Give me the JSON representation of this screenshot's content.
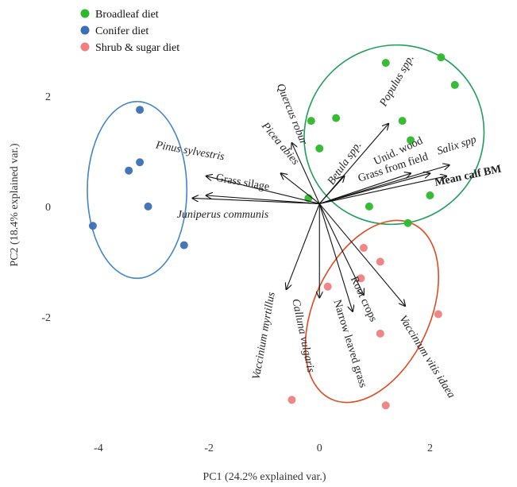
{
  "chart_data": {
    "type": "scatter",
    "subtype": "pca-biplot",
    "xlabel": "PC1 (24.2% explained var.)",
    "ylabel": "PC2 (18.4% explained var.)",
    "xlim": [
      -4.3,
      3.1
    ],
    "ylim": [
      -4.1,
      3.45
    ],
    "x_ticks": [
      -4,
      -2,
      0,
      2
    ],
    "y_ticks": [
      2,
      0,
      -2
    ],
    "x_tick_labels": [
      "-4",
      "-2",
      "0",
      "2"
    ],
    "y_tick_labels": [
      "2",
      "0",
      "-2"
    ],
    "grid": false,
    "legend_position": "top-left",
    "series": [
      {
        "name": "Broadleaf diet",
        "color": "#2db82d",
        "ellipse_color": "#1f9e5a",
        "ellipse": {
          "cx": 1.35,
          "cy": 1.3,
          "rx": 1.65,
          "ry": 1.6,
          "angle_deg": -42
        },
        "points": [
          {
            "x": 1.2,
            "y": 2.6
          },
          {
            "x": 2.2,
            "y": 2.7
          },
          {
            "x": 2.45,
            "y": 2.2
          },
          {
            "x": -0.15,
            "y": 1.55
          },
          {
            "x": 0.3,
            "y": 1.6
          },
          {
            "x": 1.5,
            "y": 1.55
          },
          {
            "x": 0.0,
            "y": 1.05
          },
          {
            "x": 1.65,
            "y": 1.2
          },
          {
            "x": -0.2,
            "y": 0.15
          },
          {
            "x": 0.9,
            "y": 0.0
          },
          {
            "x": 2.0,
            "y": 0.2
          },
          {
            "x": 1.6,
            "y": -0.3
          }
        ]
      },
      {
        "name": "Conifer diet",
        "color": "#3a6fb5",
        "ellipse_color": "#3f86c8",
        "ellipse": {
          "cx": -3.3,
          "cy": 0.3,
          "rx": 0.9,
          "ry": 1.6,
          "angle_deg": 0
        },
        "points": [
          {
            "x": -3.25,
            "y": 1.75
          },
          {
            "x": -3.25,
            "y": 0.8
          },
          {
            "x": -3.45,
            "y": 0.65
          },
          {
            "x": -3.1,
            "y": 0.0
          },
          {
            "x": -4.1,
            "y": -0.35
          },
          {
            "x": -2.45,
            "y": -0.7
          }
        ]
      },
      {
        "name": "Shrub & sugar diet",
        "color": "#f08080",
        "ellipse_color": "#e04a1f",
        "ellipse": {
          "cx": 0.95,
          "cy": -1.9,
          "rx": 1.05,
          "ry": 1.75,
          "angle_deg": 25
        },
        "points": [
          {
            "x": 0.8,
            "y": -0.75
          },
          {
            "x": 1.1,
            "y": -1.0
          },
          {
            "x": 0.75,
            "y": -1.3
          },
          {
            "x": 0.15,
            "y": -1.45
          },
          {
            "x": 2.15,
            "y": -1.95
          },
          {
            "x": 1.1,
            "y": -2.3
          },
          {
            "x": -0.5,
            "y": -3.5
          },
          {
            "x": 1.2,
            "y": -3.6
          }
        ]
      }
    ],
    "loadings": [
      {
        "label": "Populus spp.",
        "x": 1.25,
        "y": 1.5,
        "label_x": 1.45,
        "label_y": 2.25,
        "angle": -60,
        "style": "italic"
      },
      {
        "label": "Quercus robur",
        "x": -0.5,
        "y": 1.15,
        "label_x": -0.55,
        "label_y": 1.65,
        "angle": 68,
        "style": "italic"
      },
      {
        "label": "Picea abies",
        "x": -0.7,
        "y": 0.6,
        "label_x": -0.75,
        "label_y": 1.1,
        "angle": 50,
        "style": "italic"
      },
      {
        "label": "Betula spp.",
        "x": 0.45,
        "y": 0.55,
        "label_x": 0.5,
        "label_y": 0.75,
        "angle": -55,
        "style": "italic"
      },
      {
        "label": "Unid. wood",
        "x": 1.65,
        "y": 0.6,
        "label_x": 1.45,
        "label_y": 0.95,
        "angle": -25,
        "style": "plain"
      },
      {
        "label": "Salix spp",
        "x": 2.35,
        "y": 0.75,
        "label_x": 2.5,
        "label_y": 1.05,
        "angle": -18,
        "style": "italic"
      },
      {
        "label": "Grass from field",
        "x": 2.0,
        "y": 0.6,
        "label_x": 1.35,
        "label_y": 0.65,
        "angle": -18,
        "style": "plain"
      },
      {
        "label": "Mean calf BM",
        "x": 2.3,
        "y": 0.55,
        "label_x": 2.7,
        "label_y": 0.5,
        "angle": -12,
        "style": "bold"
      },
      {
        "label": "Pinus sylvestris",
        "x": -2.05,
        "y": 0.55,
        "label_x": -2.35,
        "label_y": 0.95,
        "angle": 10,
        "style": "italic"
      },
      {
        "label": "Grass silage",
        "x": -2.05,
        "y": 0.2,
        "label_x": -1.4,
        "label_y": 0.38,
        "angle": 10,
        "style": "plain"
      },
      {
        "label": "Juniperus communis",
        "x": -2.3,
        "y": 0.15,
        "label_x": -1.75,
        "label_y": -0.2,
        "angle": 0,
        "style": "italic"
      },
      {
        "label": "Vaccinium myrtillus",
        "x": -0.6,
        "y": -1.5,
        "label_x": -0.95,
        "label_y": -2.35,
        "angle": -80,
        "style": "italic"
      },
      {
        "label": "Calluna vulgaris",
        "x": 0.0,
        "y": -1.65,
        "label_x": -0.35,
        "label_y": -2.35,
        "angle": 78,
        "style": "italic"
      },
      {
        "label": "Narrow leaved grass",
        "x": 0.6,
        "y": -1.9,
        "label_x": 0.5,
        "label_y": -2.5,
        "angle": 73,
        "style": "plain"
      },
      {
        "label": "Root crops",
        "x": 0.8,
        "y": -1.6,
        "label_x": 0.75,
        "label_y": -1.7,
        "angle": 65,
        "style": "plain"
      },
      {
        "label": "Vaccinium vitis idaea",
        "x": 1.55,
        "y": -1.8,
        "label_x": 1.9,
        "label_y": -2.75,
        "angle": 58,
        "style": "italic"
      }
    ],
    "origin": {
      "x": 0.0,
      "y": 0.05
    }
  }
}
